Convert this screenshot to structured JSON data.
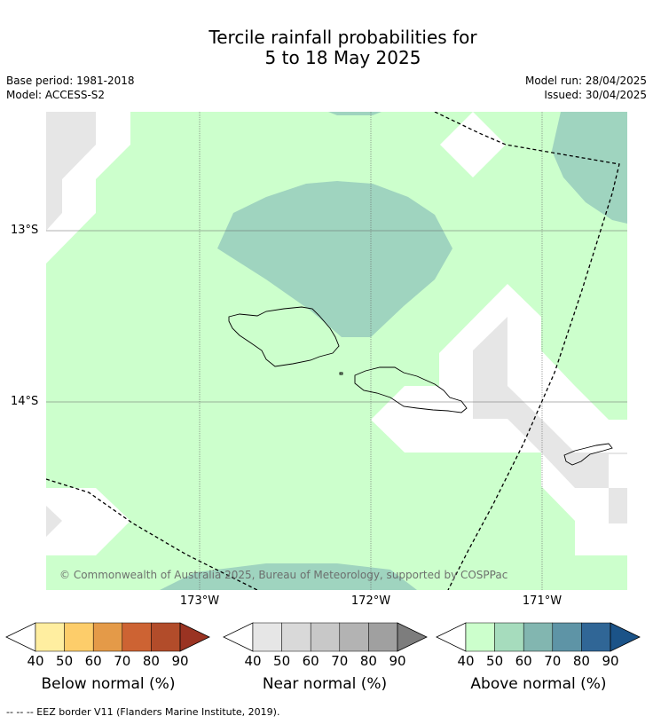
{
  "header": {
    "title_line1": "Tercile rainfall probabilities for",
    "title_line2": "5 to 18 May 2025",
    "base_period": "Base period: 1981-2018",
    "model": "Model: ACCESS-S2",
    "model_run": "Model run: 28/04/2025",
    "issued": "Issued: 30/04/2025"
  },
  "map": {
    "longitude_labels": [
      "173°W",
      "172°W",
      "171°W"
    ],
    "latitude_labels": [
      "13°S",
      "14°S"
    ],
    "copyright": "© Commonwealth of Australia 2025, Bureau of Meteorology, supported by COSPPac"
  },
  "colorbars": [
    {
      "title": "Below normal (%)",
      "ticks": [
        "40",
        "50",
        "60",
        "70",
        "80",
        "90"
      ],
      "colors": [
        "#ffffff",
        "#ffeea0",
        "#fdcd6a",
        "#e49a48",
        "#cd6333",
        "#b24c2a",
        "#9a3322"
      ]
    },
    {
      "title": "Near normal (%)",
      "ticks": [
        "40",
        "50",
        "60",
        "70",
        "80",
        "90"
      ],
      "colors": [
        "#ffffff",
        "#e6e6e6",
        "#d9d9d9",
        "#c8c8c8",
        "#b3b3b3",
        "#a0a0a0",
        "#7d7d7d"
      ]
    },
    {
      "title": "Above normal (%)",
      "ticks": [
        "40",
        "50",
        "60",
        "70",
        "80",
        "90"
      ],
      "colors": [
        "#ffffff",
        "#ccffcc",
        "#a6dcbd",
        "#82b6b0",
        "#5e94a6",
        "#306696",
        "#1b5388"
      ]
    }
  ],
  "legend_note": "--  --  -- EEZ border V11 (Flanders Marine Institute, 2019)."
}
